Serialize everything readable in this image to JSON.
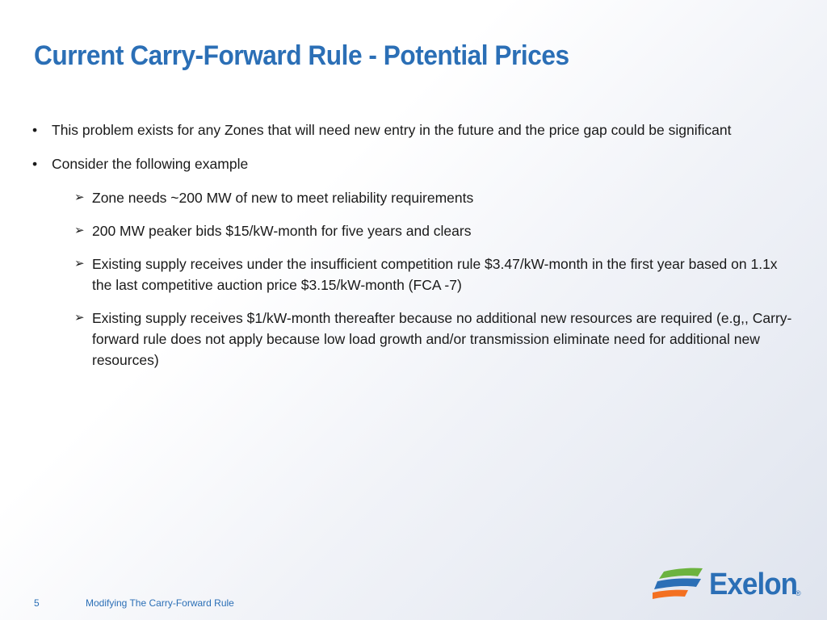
{
  "colors": {
    "title": "#2b6fb6",
    "text": "#1a1a1a",
    "footer_text": "#2b6fb6",
    "logo_text": "#2b6fb6",
    "logo_green": "#6cb33f",
    "logo_blue": "#2b6fb6",
    "logo_orange": "#f37021"
  },
  "slide": {
    "title": "Current Carry-Forward Rule - Potential Prices",
    "bullets": [
      {
        "marker": "•",
        "text": "This problem exists for any Zones that will need new entry in the future and the price gap could be significant"
      },
      {
        "marker": "•",
        "text": "Consider the following example"
      }
    ],
    "sub_bullets": [
      {
        "marker": "➢",
        "text": "Zone needs ~200 MW of new to meet reliability requirements"
      },
      {
        "marker": "➢",
        "text": "200 MW peaker bids $15/kW-month for five years and clears"
      },
      {
        "marker": "➢",
        "text": "Existing supply receives under the insufficient competition rule $3.47/kW-month  in the first year based on 1.1x the last competitive auction price $3.15/kW-month (FCA -7)"
      },
      {
        "marker": "➢",
        "text": "Existing supply receives $1/kW-month thereafter because no additional new resources are required (e.g,, Carry-forward rule does not apply because low load growth and/or transmission eliminate need for additional new resources)"
      }
    ]
  },
  "footer": {
    "page_number": "5",
    "text": "Modifying The Carry-Forward Rule"
  },
  "logo": {
    "name": "Exelon",
    "registered_mark": "®",
    "icon": "exelon-swoosh-icon"
  }
}
